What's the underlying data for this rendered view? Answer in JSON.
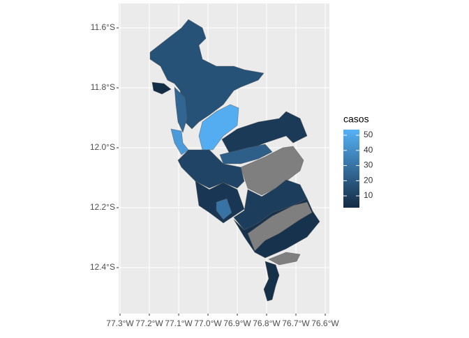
{
  "chart_data": {
    "type": "choropleth",
    "xlim": [
      -77.3048,
      -76.5857
    ],
    "ylim": [
      -12.5535,
      -11.5186
    ],
    "xticks": [
      {
        "value": -77.3,
        "label": "77.3°W"
      },
      {
        "value": -77.2,
        "label": "77.2°W"
      },
      {
        "value": -77.1,
        "label": "77.1°W"
      },
      {
        "value": -77.0,
        "label": "77.0°W"
      },
      {
        "value": -76.9,
        "label": "76.9°W"
      },
      {
        "value": -76.8,
        "label": "76.8°W"
      },
      {
        "value": -76.7,
        "label": "76.7°W"
      },
      {
        "value": -76.6,
        "label": "76.6°W"
      }
    ],
    "yticks": [
      {
        "value": -11.6,
        "label": "11.6°S"
      },
      {
        "value": -11.8,
        "label": "11.8°S"
      },
      {
        "value": -12.0,
        "label": "12.0°S"
      },
      {
        "value": -12.2,
        "label": "12.2°S"
      },
      {
        "value": -12.4,
        "label": "12.4°S"
      }
    ],
    "grid": true,
    "values": [
      17,
      3,
      52,
      25,
      45,
      8,
      22,
      null,
      12,
      7,
      30,
      9,
      null,
      5,
      null,
      4
    ],
    "legend": {
      "title": "casos",
      "limits": [
        2.2,
        53.7
      ],
      "ticks": [
        10,
        20,
        30,
        40,
        50
      ],
      "low_color": "#132B43",
      "high_color": "#56B1F7",
      "na_color": "#7F7F7F"
    }
  }
}
